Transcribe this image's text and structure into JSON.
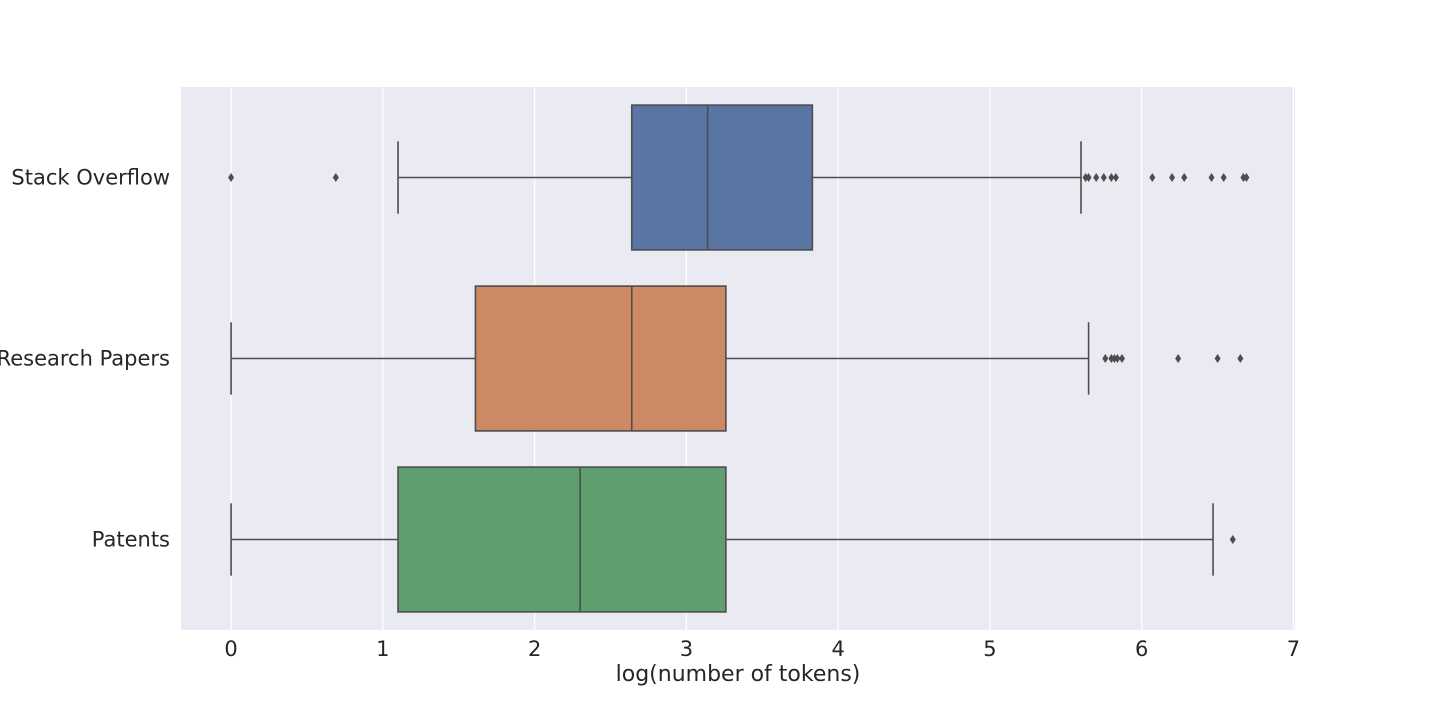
{
  "chart_data": {
    "type": "boxplot",
    "orientation": "horizontal",
    "title": "",
    "xlabel": "log(number of tokens)",
    "ylabel": "",
    "xlim": [
      -0.33,
      7.01
    ],
    "xticks": [
      0,
      1,
      2,
      3,
      4,
      5,
      6,
      7
    ],
    "xtick_labels": [
      "0",
      "1",
      "2",
      "3",
      "4",
      "5",
      "6",
      "7"
    ],
    "grid": true,
    "background": "#eaeaf2",
    "grid_color": "#ffffff",
    "line_color": "#4d4d4d",
    "categories": [
      "Stack Overflow",
      "Research Papers",
      "Patents"
    ],
    "series": [
      {
        "name": "Stack Overflow",
        "color": "#5875a4",
        "whisker_low": 1.1,
        "q1": 2.64,
        "median": 3.14,
        "q3": 3.83,
        "whisker_high": 5.6,
        "outliers": [
          0.0,
          0.69,
          5.63,
          5.65,
          5.7,
          5.75,
          5.8,
          5.83,
          6.07,
          6.2,
          6.28,
          6.46,
          6.54,
          6.67,
          6.69
        ]
      },
      {
        "name": "Research Papers",
        "color": "#cc8963",
        "whisker_low": 0.0,
        "q1": 1.61,
        "median": 2.64,
        "q3": 3.26,
        "whisker_high": 5.65,
        "outliers": [
          5.76,
          5.8,
          5.82,
          5.84,
          5.87,
          6.24,
          6.5,
          6.65
        ]
      },
      {
        "name": "Patents",
        "color": "#5f9e6e",
        "whisker_low": 0.0,
        "q1": 1.1,
        "median": 2.3,
        "q3": 3.26,
        "whisker_high": 6.47,
        "outliers": [
          6.6
        ]
      }
    ]
  }
}
